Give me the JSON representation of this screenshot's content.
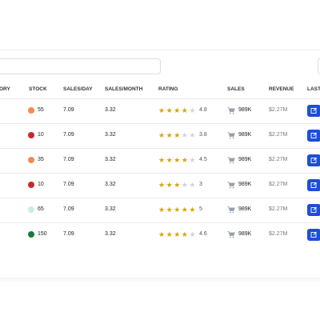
{
  "table": {
    "header": [
      "ORY",
      "STOCK",
      "SALES/DAY",
      "SALES/MONTH",
      "RATING",
      "SALES",
      "REVENUE",
      "LAST U"
    ],
    "rows": [
      {
        "stock": 55,
        "stock_color": "#f28b50",
        "sales_day": 7.09,
        "sales_month": 3.32,
        "rating": 4.8,
        "sales": "989K",
        "revenue": "$2.27M"
      },
      {
        "stock": 10,
        "stock_color": "#c62828",
        "sales_day": 7.09,
        "sales_month": 3.32,
        "rating": 3.8,
        "sales": "989K",
        "revenue": "$2.27M"
      },
      {
        "stock": 35,
        "stock_color": "#f28b50",
        "sales_day": 7.09,
        "sales_month": 3.32,
        "rating": 4.5,
        "sales": "989K",
        "revenue": "$2.27M"
      },
      {
        "stock": 10,
        "stock_color": "#c62828",
        "sales_day": 7.09,
        "sales_month": 3.32,
        "rating": 3,
        "sales": "989K",
        "revenue": "$2.27M"
      },
      {
        "stock": 65,
        "stock_color": "#c9eee0",
        "sales_day": 7.09,
        "sales_month": 3.32,
        "rating": 5,
        "sales": "989K",
        "revenue": "$2.27M"
      },
      {
        "stock": 150,
        "stock_color": "#1b7a3a",
        "sales_day": 7.09,
        "sales_month": 3.32,
        "rating": 4.6,
        "sales": "989K",
        "revenue": "$2.27M"
      }
    ]
  }
}
